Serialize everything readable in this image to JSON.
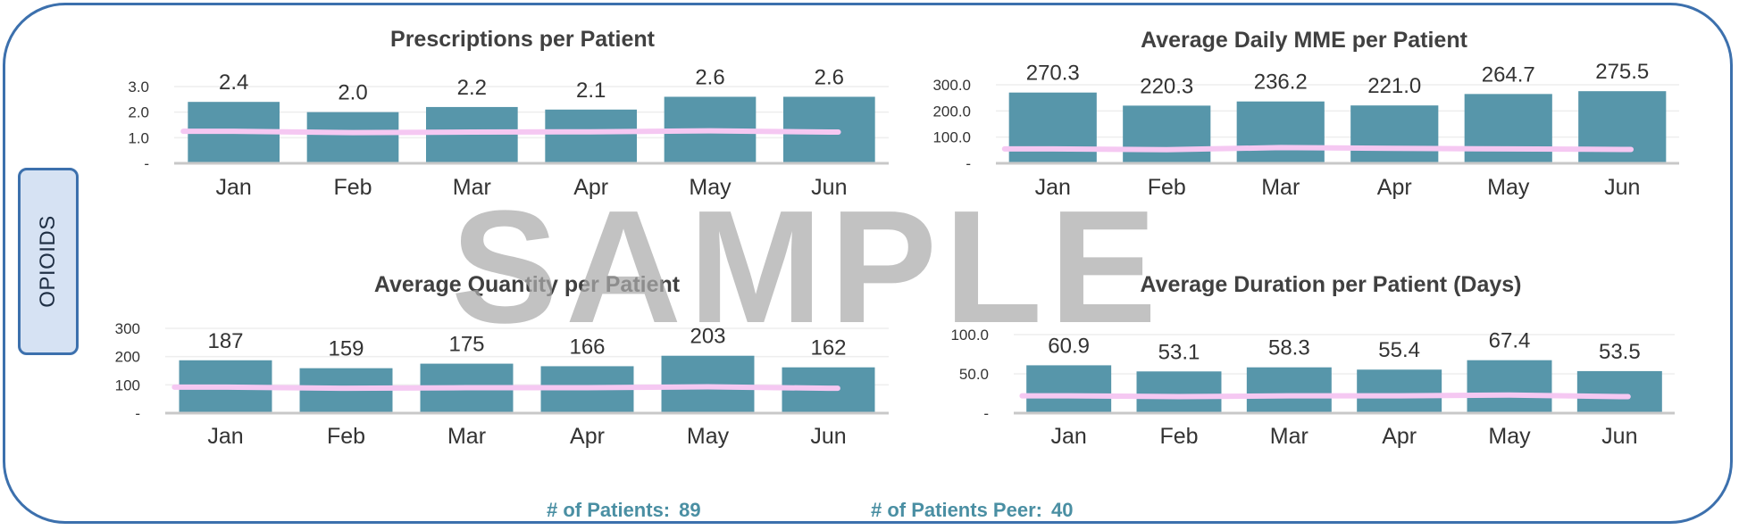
{
  "panel_label": "OPIOIDS",
  "watermark": "SAMPLE",
  "footer": {
    "patients_label": "# of Patients:",
    "patients_value": "89",
    "peer_label": "# of Patients Peer:",
    "peer_value": "40"
  },
  "colors": {
    "bar": "#5796aa",
    "peer_line": "#f5c8f2",
    "frame": "#3c70ad",
    "title": "#404040"
  },
  "chart_data": [
    {
      "type": "bar",
      "title": "Prescriptions per Patient",
      "categories": [
        "Jan",
        "Feb",
        "Mar",
        "Apr",
        "May",
        "Jun"
      ],
      "values": [
        2.4,
        2.0,
        2.2,
        2.1,
        2.6,
        2.6
      ],
      "value_labels": [
        "2.4",
        "2.0",
        "2.2",
        "2.1",
        "2.6",
        "2.6"
      ],
      "peer_values": [
        1.25,
        1.2,
        1.22,
        1.23,
        1.27,
        1.22
      ],
      "yticks": [
        "-",
        "1.0",
        "2.0",
        "3.0"
      ],
      "ylim": [
        0,
        3
      ],
      "grid": true
    },
    {
      "type": "bar",
      "title": "Average Daily MME per Patient",
      "categories": [
        "Jan",
        "Feb",
        "Mar",
        "Apr",
        "May",
        "Jun"
      ],
      "values": [
        270.3,
        220.3,
        236.2,
        221.0,
        264.7,
        275.5
      ],
      "value_labels": [
        "270.3",
        "220.3",
        "236.2",
        "221.0",
        "264.7",
        "275.5"
      ],
      "peer_values": [
        55,
        52,
        60,
        57,
        55,
        53
      ],
      "yticks": [
        "-",
        "100.0",
        "200.0",
        "300.0"
      ],
      "ylim": [
        0,
        300
      ],
      "grid": true
    },
    {
      "type": "bar",
      "title": "Average Quantity per Patient",
      "categories": [
        "Jan",
        "Feb",
        "Mar",
        "Apr",
        "May",
        "Jun"
      ],
      "values": [
        187,
        159,
        175,
        166,
        203,
        162
      ],
      "value_labels": [
        "187",
        "159",
        "175",
        "166",
        "203",
        "162"
      ],
      "peer_values": [
        92,
        88,
        90,
        90,
        93,
        88
      ],
      "yticks": [
        "-",
        "100",
        "200",
        "300"
      ],
      "ylim": [
        0,
        300
      ],
      "grid": true
    },
    {
      "type": "bar",
      "title": "Average Duration per Patient (Days)",
      "categories": [
        "Jan",
        "Feb",
        "Mar",
        "Apr",
        "May",
        "Jun"
      ],
      "values": [
        60.9,
        53.1,
        58.3,
        55.4,
        67.4,
        53.5
      ],
      "value_labels": [
        "60.9",
        "53.1",
        "58.3",
        "55.4",
        "67.4",
        "53.5"
      ],
      "peer_values": [
        22,
        21,
        22,
        22,
        23,
        21
      ],
      "yticks": [
        "-",
        "50.0",
        "100.0"
      ],
      "ylim": [
        0,
        100
      ],
      "grid": true
    }
  ]
}
